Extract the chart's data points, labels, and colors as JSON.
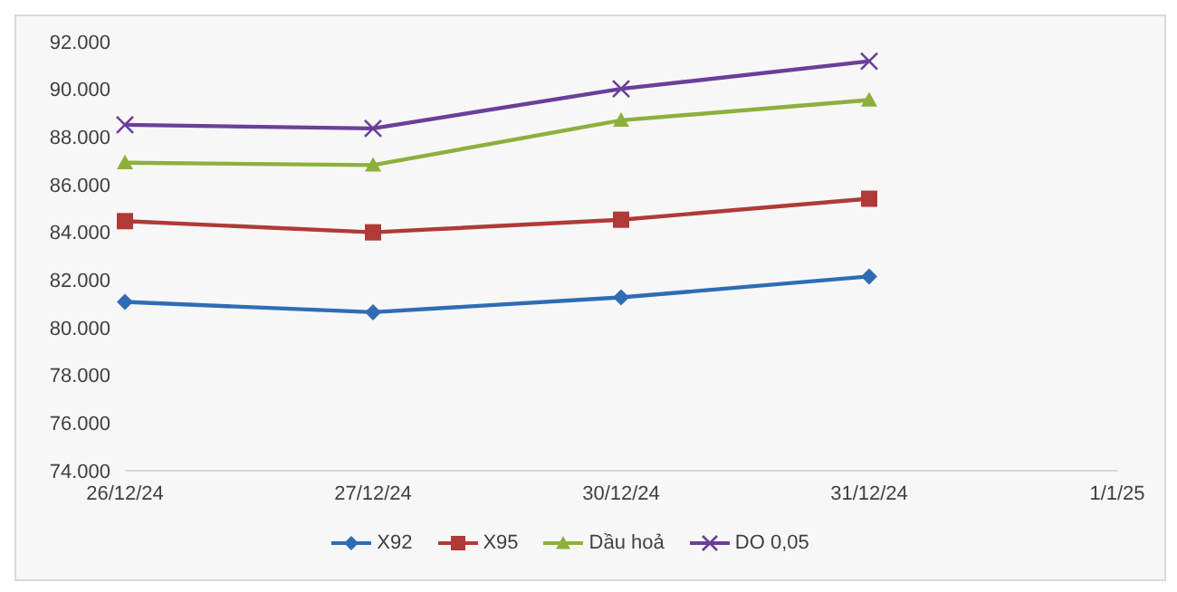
{
  "chart_data": {
    "type": "line",
    "categories": [
      "26/12/24",
      "27/12/24",
      "30/12/24",
      "31/12/24",
      "1/1/25"
    ],
    "series": [
      {
        "name": "X92",
        "color": "#2e6db5",
        "marker": "diamond",
        "values": [
          81080,
          80650,
          81270,
          82150,
          null
        ]
      },
      {
        "name": "X95",
        "color": "#b03a37",
        "marker": "square",
        "values": [
          84470,
          84000,
          84530,
          85410,
          null
        ]
      },
      {
        "name": "Dầu hoả",
        "color": "#8db03d",
        "marker": "triangle",
        "values": [
          86920,
          86820,
          88700,
          89550,
          null
        ]
      },
      {
        "name": "DO 0,05",
        "color": "#6a3f9a",
        "marker": "cross",
        "values": [
          88510,
          88360,
          90020,
          91180,
          null
        ]
      }
    ],
    "ylim": [
      74000,
      92000
    ],
    "yticks": [
      {
        "value": 74000,
        "label": "74.000"
      },
      {
        "value": 76000,
        "label": "76.000"
      },
      {
        "value": 78000,
        "label": "78.000"
      },
      {
        "value": 80000,
        "label": "80.000"
      },
      {
        "value": 82000,
        "label": "82.000"
      },
      {
        "value": 84000,
        "label": "84.000"
      },
      {
        "value": 86000,
        "label": "86.000"
      },
      {
        "value": 88000,
        "label": "88.000"
      },
      {
        "value": 90000,
        "label": "90.000"
      },
      {
        "value": 92000,
        "label": "92.000"
      }
    ],
    "grid": false,
    "legend": "bottom",
    "line_style": "solid"
  }
}
